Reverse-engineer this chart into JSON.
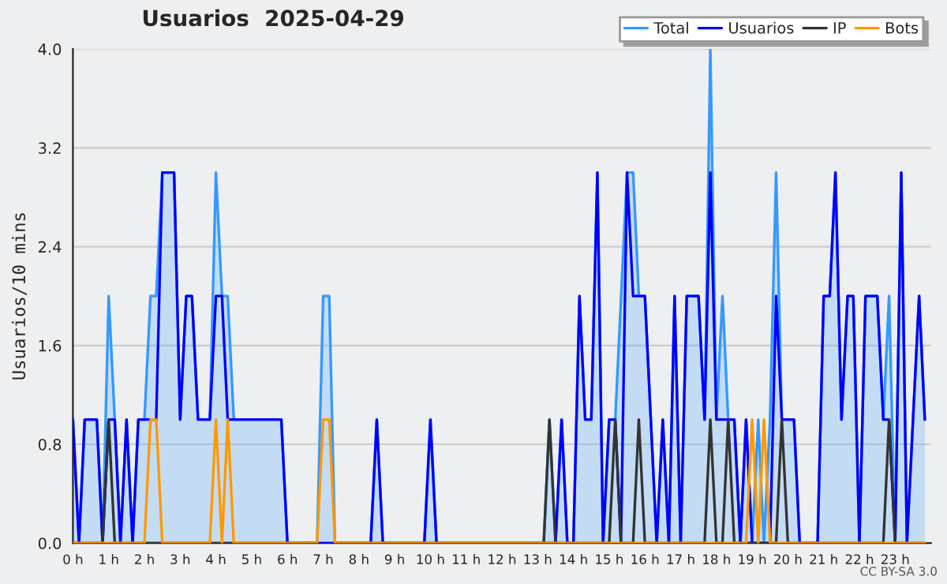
{
  "chart_data": {
    "type": "line",
    "title": "Usuarios  2025-04-29",
    "ylabel": "Usuarios/10 mins",
    "xlim": [
      0,
      24
    ],
    "xticks": [
      {
        "value": 0,
        "label": "0 h"
      },
      {
        "value": 1,
        "label": "1 h"
      },
      {
        "value": 2,
        "label": "2 h"
      },
      {
        "value": 3,
        "label": "3 h"
      },
      {
        "value": 4,
        "label": "4 h"
      },
      {
        "value": 5,
        "label": "5 h"
      },
      {
        "value": 6,
        "label": "6 h"
      },
      {
        "value": 7,
        "label": "7 h"
      },
      {
        "value": 8,
        "label": "8 h"
      },
      {
        "value": 9,
        "label": "9 h"
      },
      {
        "value": 10,
        "label": "10 h"
      },
      {
        "value": 11,
        "label": "11 h"
      },
      {
        "value": 12,
        "label": "12 h"
      },
      {
        "value": 13,
        "label": "13 h"
      },
      {
        "value": 14,
        "label": "14 h"
      },
      {
        "value": 15,
        "label": "15 h"
      },
      {
        "value": 16,
        "label": "16 h"
      },
      {
        "value": 17,
        "label": "17 h"
      },
      {
        "value": 18,
        "label": "18 h"
      },
      {
        "value": 19,
        "label": "19 h"
      },
      {
        "value": 20,
        "label": "20 h"
      },
      {
        "value": 21,
        "label": "21 h"
      },
      {
        "value": 22,
        "label": "22 h"
      },
      {
        "value": 23,
        "label": "23 h"
      }
    ],
    "ylim": [
      0,
      4.0
    ],
    "yticks": [
      {
        "value": 0,
        "label": "0.0"
      },
      {
        "value": 0.8,
        "label": "0.8"
      },
      {
        "value": 1.6,
        "label": "1.6"
      },
      {
        "value": 2.4,
        "label": "2.4"
      },
      {
        "value": 3.2,
        "label": "3.2"
      },
      {
        "value": 4.0,
        "label": "4.0"
      }
    ],
    "grid": "y",
    "legend": "top right",
    "series": [
      {
        "name": "Total",
        "type": "area",
        "color": "#3399ff",
        "x": [
          0,
          0.17,
          0.33,
          0.67,
          0.83,
          1.0,
          1.17,
          1.33,
          1.5,
          1.67,
          1.83,
          2.0,
          2.17,
          2.33,
          2.5,
          2.83,
          3.0,
          3.17,
          3.33,
          3.5,
          3.83,
          4.0,
          4.17,
          4.33,
          4.5,
          5.83,
          6.0,
          6.83,
          7.0,
          7.17,
          7.33,
          8.33,
          8.5,
          8.67,
          9.83,
          10.0,
          10.17,
          13.17,
          13.33,
          13.5,
          13.67,
          13.83,
          14.0,
          14.17,
          14.33,
          14.5,
          14.67,
          14.83,
          15.0,
          15.17,
          15.5,
          15.67,
          15.83,
          16.0,
          16.33,
          16.5,
          16.67,
          16.83,
          17.0,
          17.17,
          17.5,
          17.67,
          17.83,
          18.0,
          18.17,
          18.33,
          18.5,
          18.67,
          18.83,
          19.0,
          19.17,
          19.33,
          19.5,
          19.67,
          19.83,
          20.17,
          20.33,
          20.83,
          21.0,
          21.17,
          21.33,
          21.5,
          21.67,
          21.83,
          22.0,
          22.17,
          22.5,
          22.67,
          22.83,
          23.0,
          23.17,
          23.33,
          23.5,
          23.67,
          23.83
        ],
        "values": [
          1,
          0,
          1,
          1,
          0,
          2,
          1,
          0,
          1,
          0,
          1,
          1,
          2,
          2,
          3,
          3,
          1,
          2,
          2,
          1,
          1,
          3,
          2,
          2,
          1,
          1,
          0,
          0,
          2,
          2,
          0,
          0,
          1,
          0,
          0,
          1,
          0,
          0,
          1,
          0,
          1,
          0,
          0,
          2,
          1,
          1,
          3,
          0,
          1,
          1,
          3,
          3,
          2,
          2,
          0,
          1,
          0,
          2,
          0,
          2,
          2,
          1,
          4,
          1,
          2,
          1,
          1,
          0,
          1,
          0,
          1,
          0,
          1,
          3,
          1,
          1,
          0,
          0,
          2,
          2,
          3,
          1,
          2,
          2,
          0,
          2,
          2,
          1,
          2,
          0,
          3,
          0,
          1,
          2,
          1
        ]
      },
      {
        "name": "Usuarios",
        "color": "#0000ff",
        "x": [
          0,
          0.17,
          0.33,
          0.67,
          0.83,
          1.0,
          1.17,
          1.33,
          1.5,
          1.67,
          1.83,
          2.33,
          2.5,
          2.83,
          3.0,
          3.17,
          3.33,
          3.5,
          3.83,
          4.0,
          4.17,
          4.33,
          5.83,
          6.0,
          8.33,
          8.5,
          8.67,
          9.83,
          10.0,
          10.17,
          13.5,
          13.67,
          13.83,
          14.0,
          14.17,
          14.33,
          14.5,
          14.67,
          14.83,
          15.0,
          15.17,
          15.33,
          15.5,
          15.67,
          16.0,
          16.33,
          16.5,
          16.67,
          16.83,
          17.0,
          17.17,
          17.5,
          17.67,
          17.83,
          18.0,
          18.5,
          18.67,
          18.83,
          19.0,
          19.5,
          19.67,
          19.83,
          20.17,
          20.33,
          20.83,
          21.0,
          21.17,
          21.33,
          21.5,
          21.67,
          21.83,
          22.0,
          22.17,
          22.5,
          22.67,
          22.83,
          23.0,
          23.17,
          23.33,
          23.5,
          23.67,
          23.83
        ],
        "values": [
          1,
          0,
          1,
          1,
          0,
          1,
          1,
          0,
          1,
          0,
          1,
          1,
          3,
          3,
          1,
          2,
          2,
          1,
          1,
          2,
          2,
          1,
          1,
          0,
          0,
          1,
          0,
          0,
          1,
          0,
          0,
          1,
          0,
          0,
          2,
          1,
          1,
          3,
          0,
          1,
          1,
          0,
          3,
          2,
          2,
          0,
          1,
          0,
          2,
          0,
          2,
          2,
          1,
          3,
          1,
          1,
          0,
          1,
          0,
          0,
          2,
          1,
          1,
          0,
          0,
          2,
          2,
          3,
          1,
          2,
          2,
          0,
          2,
          2,
          1,
          1,
          0,
          3,
          0,
          1,
          2,
          1
        ]
      },
      {
        "name": "IP",
        "color": "#333333",
        "x": [
          0,
          0.83,
          1.0,
          1.17,
          6.83,
          7.0,
          7.17,
          7.33,
          13.17,
          13.33,
          13.5,
          15.0,
          15.17,
          15.33,
          15.67,
          15.83,
          16.0,
          17.67,
          17.83,
          18.0,
          18.17,
          18.33,
          18.5,
          19.67,
          19.83,
          20.0,
          22.67,
          22.83,
          23.0,
          23.83
        ],
        "values": [
          0,
          0,
          1,
          0,
          0,
          null,
          null,
          0,
          0,
          1,
          0,
          0,
          1,
          0,
          0,
          1,
          0,
          0,
          1,
          0,
          0,
          1,
          0,
          0,
          1,
          0,
          0,
          1,
          0,
          0
        ]
      },
      {
        "name": "Bots",
        "color": "#ff9900",
        "x": [
          0,
          2.0,
          2.17,
          2.33,
          2.5,
          3.83,
          4.0,
          4.17,
          4.33,
          4.5,
          6.83,
          7.0,
          7.17,
          7.33,
          18.83,
          19.0,
          19.17,
          19.33,
          19.5,
          23.83
        ],
        "values": [
          0,
          0,
          1,
          1,
          0,
          0,
          1,
          0,
          1,
          0,
          0,
          1,
          1,
          0,
          0,
          1,
          0,
          1,
          0,
          0
        ]
      }
    ],
    "annotations": [
      "CC BY-SA 3.0"
    ]
  }
}
